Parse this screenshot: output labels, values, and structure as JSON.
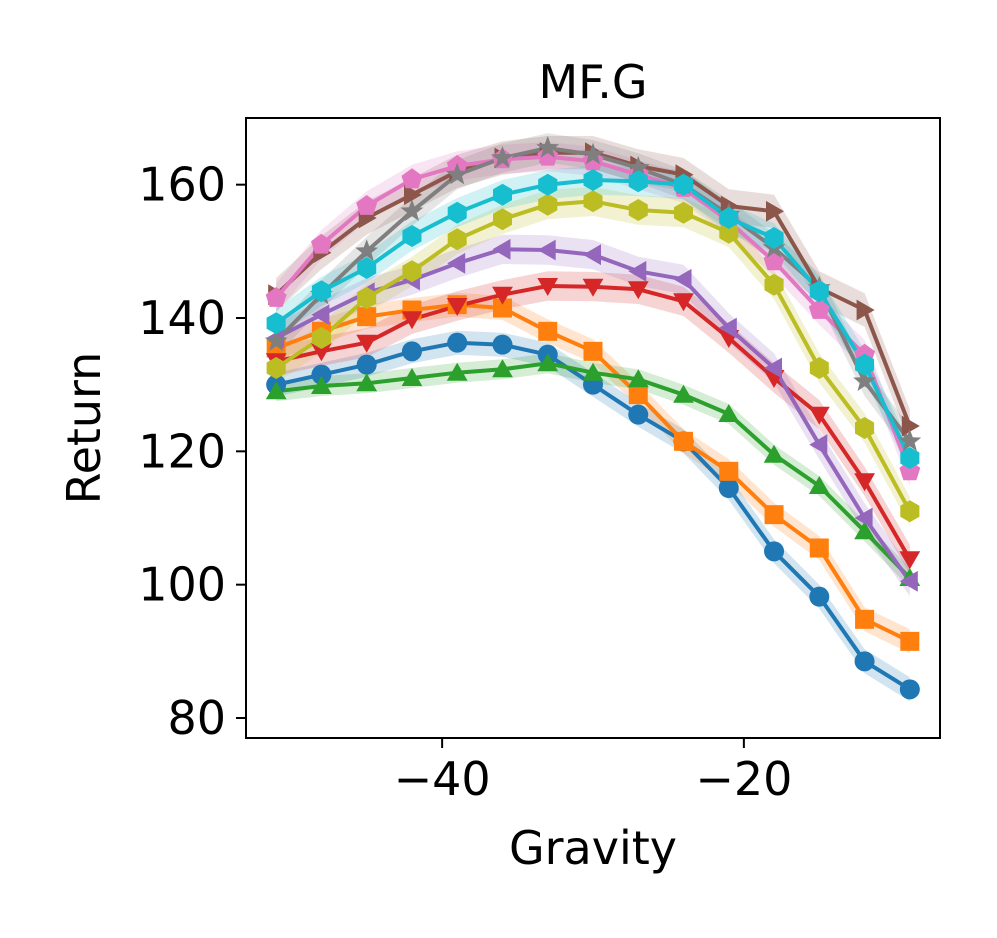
{
  "chart_data": {
    "type": "line",
    "title": "MF.G",
    "xlabel": "Gravity",
    "ylabel": "Return",
    "xlim": [
      -53,
      -7
    ],
    "ylim": [
      77,
      170
    ],
    "x_ticks": [
      {
        "value": -40,
        "label": "−40"
      },
      {
        "value": -20,
        "label": "−20"
      }
    ],
    "y_ticks": [
      {
        "value": 80,
        "label": "80"
      },
      {
        "value": 100,
        "label": "100"
      },
      {
        "value": 120,
        "label": "120"
      },
      {
        "value": 140,
        "label": "140"
      },
      {
        "value": 160,
        "label": "160"
      }
    ],
    "grid": false,
    "x": [
      -51,
      -48,
      -45,
      -42,
      -39,
      -36,
      -33,
      -30,
      -27,
      -24,
      -21,
      -18,
      -15,
      -12,
      -9
    ],
    "series": [
      {
        "marker": "circle",
        "color": "#1f77b4",
        "band": 1.8,
        "values": [
          130,
          131.5,
          133,
          135,
          136.3,
          136,
          134.5,
          130,
          125.5,
          121.5,
          114.5,
          105,
          98.2,
          88.5,
          84.3
        ]
      },
      {
        "marker": "square",
        "color": "#ff7f0e",
        "band": 1.8,
        "values": [
          135.5,
          138,
          140.2,
          141.2,
          142,
          141.5,
          138,
          135,
          128.5,
          121.5,
          117,
          110.5,
          105.5,
          94.8,
          91.5
        ]
      },
      {
        "marker": "triangle-up",
        "color": "#2ca02c",
        "band": 1.5,
        "values": [
          129,
          129.8,
          130.2,
          131,
          131.8,
          132.3,
          133.2,
          131.8,
          130.8,
          128.5,
          125.6,
          119.5,
          114.8,
          108,
          101
        ]
      },
      {
        "marker": "triangle-down",
        "color": "#d62728",
        "band": 2.2,
        "values": [
          133.5,
          135,
          136.3,
          139.8,
          141.8,
          143.5,
          144.8,
          144.7,
          144.3,
          142.5,
          137,
          131,
          125.5,
          115.5,
          103.8
        ]
      },
      {
        "marker": "triangle-left",
        "color": "#9467bd",
        "band": 2.2,
        "values": [
          137,
          140.5,
          143.8,
          145.7,
          148.2,
          150.3,
          150.2,
          149.5,
          147,
          145.8,
          138.5,
          132.5,
          121,
          110,
          100.5
        ]
      },
      {
        "marker": "triangle-right",
        "color": "#8c564b",
        "band": 2.5,
        "values": [
          143.5,
          149.8,
          155,
          158.5,
          162,
          164,
          164.8,
          164.8,
          162.8,
          161.5,
          156.8,
          156,
          144.5,
          141.2,
          123.8
        ]
      },
      {
        "marker": "pentagon",
        "color": "#e377c2",
        "band": 2.2,
        "values": [
          143,
          151,
          156.8,
          160.8,
          162.8,
          163.8,
          164.2,
          163.5,
          161.5,
          159.5,
          154.5,
          148.5,
          141.2,
          134.5,
          117
        ]
      },
      {
        "marker": "star",
        "color": "#7f7f7f",
        "band": 2.2,
        "values": [
          136.5,
          143.5,
          150,
          156,
          161.5,
          164,
          165.5,
          164.5,
          162.5,
          160,
          155.5,
          150.5,
          144.5,
          130.5,
          121.5
        ]
      },
      {
        "marker": "hexagon",
        "color": "#bcbd22",
        "band": 2.2,
        "values": [
          132.5,
          137,
          143,
          147,
          151.8,
          154.8,
          157,
          157.5,
          156.2,
          155.8,
          152.8,
          145,
          132.5,
          123.5,
          111
        ]
      },
      {
        "marker": "hexagon",
        "color": "#17becf",
        "band": 2.2,
        "values": [
          139.2,
          144,
          147.5,
          152.3,
          155.8,
          158.5,
          160,
          160.7,
          160.5,
          160,
          155,
          152,
          144,
          133,
          119
        ]
      }
    ]
  }
}
